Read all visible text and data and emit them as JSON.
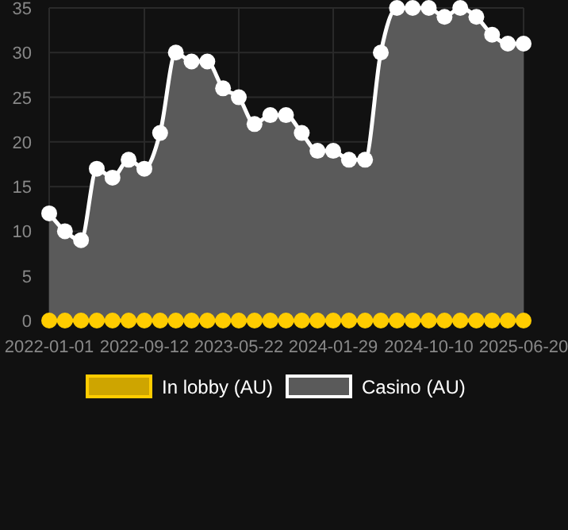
{
  "chart_data": {
    "type": "area",
    "x": [
      "2022-01-01",
      "2022-02-12",
      "2022-03-27",
      "2022-05-08",
      "2022-06-19",
      "2022-08-01",
      "2022-09-12",
      "2022-10-24",
      "2022-12-05",
      "2023-01-16",
      "2023-02-27",
      "2023-04-10",
      "2023-05-22",
      "2023-07-03",
      "2023-08-14",
      "2023-09-25",
      "2023-11-06",
      "2023-12-18",
      "2024-01-29",
      "2024-03-11",
      "2024-04-23",
      "2024-06-04",
      "2024-07-17",
      "2024-08-28",
      "2024-10-10",
      "2024-11-21",
      "2025-01-02",
      "2025-02-14",
      "2025-03-28",
      "2025-05-09",
      "2025-06-20"
    ],
    "xlim": [
      "2022-01-01",
      "2025-06-20"
    ],
    "xticks": [
      "2022-01-01",
      "2022-09-12",
      "2023-05-22",
      "2024-01-29",
      "2024-10-10",
      "2025-06-20"
    ],
    "ylim": [
      0,
      35
    ],
    "yticks": [
      0,
      5,
      10,
      15,
      20,
      25,
      30,
      35
    ],
    "grid": true,
    "legend": "bottom",
    "marker": "circle",
    "series": [
      {
        "name": "Casino (AU)",
        "type": "area",
        "color": "#ffffff",
        "values": [
          12,
          10,
          9,
          17,
          16,
          18,
          17,
          21,
          30,
          29,
          29,
          26,
          25,
          22,
          23,
          23,
          21,
          19,
          19,
          18,
          18,
          30,
          35,
          35,
          35,
          34,
          35,
          34,
          32,
          31,
          31
        ]
      },
      {
        "name": "In lobby (AU)",
        "type": "line",
        "color": "#ffcc00",
        "values": [
          0,
          0,
          0,
          0,
          0,
          0,
          0,
          0,
          0,
          0,
          0,
          0,
          0,
          0,
          0,
          0,
          0,
          0,
          0,
          0,
          0,
          0,
          0,
          0,
          0,
          0,
          0,
          0,
          0,
          0,
          0
        ]
      }
    ]
  }
}
